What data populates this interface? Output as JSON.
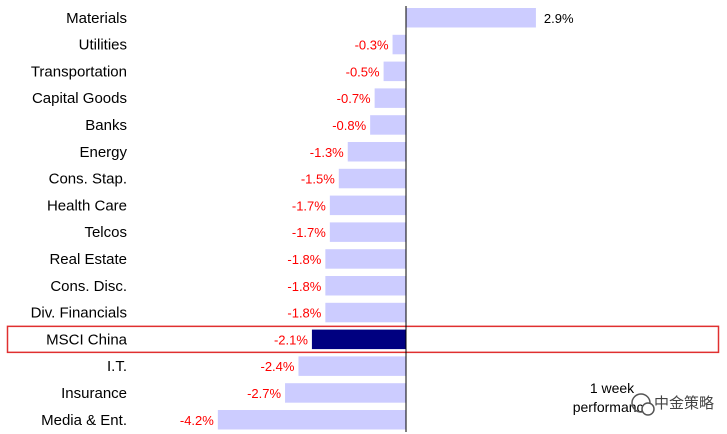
{
  "chart_data": {
    "type": "bar",
    "orientation": "horizontal",
    "categories": [
      "Materials",
      "Utilities",
      "Transportation",
      "Capital Goods",
      "Banks",
      "Energy",
      "Cons. Stap.",
      "Health Care",
      "Telcos",
      "Real Estate",
      "Cons. Disc.",
      "Div. Financials",
      "MSCI China",
      "I.T.",
      "Insurance",
      "Media & Ent."
    ],
    "values": [
      2.9,
      -0.3,
      -0.5,
      -0.7,
      -0.8,
      -1.3,
      -1.5,
      -1.7,
      -1.7,
      -1.8,
      -1.8,
      -1.8,
      -2.1,
      -2.4,
      -2.7,
      -4.2
    ],
    "value_labels": [
      "2.9%",
      "-0.3%",
      "-0.5%",
      "-0.7%",
      "-0.8%",
      "-1.3%",
      "-1.5%",
      "-1.7%",
      "-1.7%",
      "-1.8%",
      "-1.8%",
      "-1.8%",
      "-2.1%",
      "-2.4%",
      "-2.7%",
      "-4.2%"
    ],
    "highlight_category": "MSCI China",
    "xlim": [
      -4.2,
      2.9
    ],
    "annotation": [
      "1 week",
      "performance"
    ],
    "colors": {
      "bar": "#ccccff",
      "highlight_bar": "#000080",
      "highlight_box": "#e03030",
      "negative_label": "#ff0000",
      "positive_label": "#000000",
      "axis": "#000000"
    }
  },
  "watermark": "中金策略"
}
